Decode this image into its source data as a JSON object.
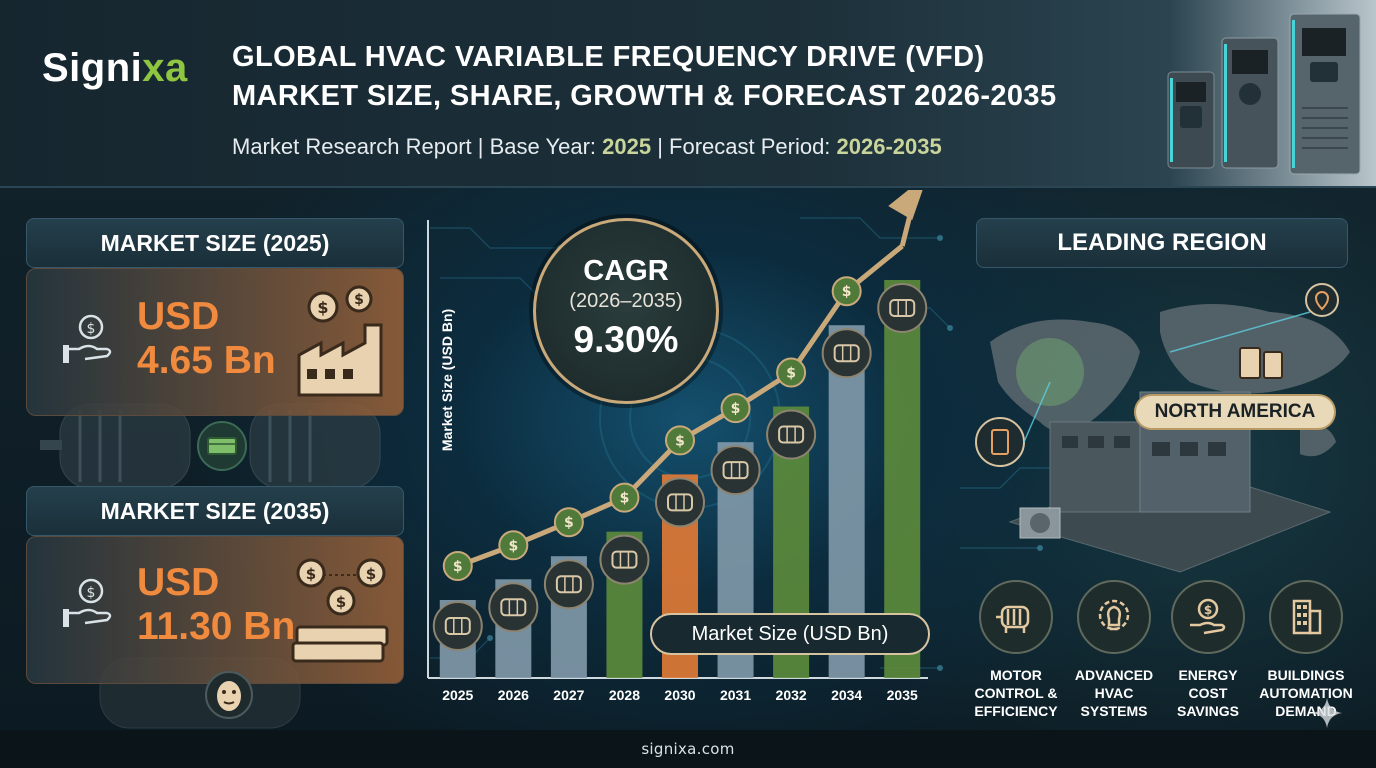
{
  "header": {
    "logo_main": "Signi",
    "logo_accent": "xa",
    "title_line1": "GLOBAL HVAC VARIABLE FREQUENCY DRIVE (VFD)",
    "title_line2": "MARKET SIZE, SHARE, GROWTH & FORECAST 2026-2035",
    "subtitle_prefix": "Market Research Report | Base Year: ",
    "base_year": "2025",
    "subtitle_mid": " | Forecast Period: ",
    "forecast_period": "2026-2035"
  },
  "market_2025": {
    "title": "MARKET SIZE (2025)",
    "value_line1": "USD",
    "value_line2": "4.65 Bn"
  },
  "market_2035": {
    "title": "MARKET SIZE (2035)",
    "value_line1": "USD",
    "value_line2": "11.30 Bn"
  },
  "cagr": {
    "label": "CAGR",
    "period": "(2026–2035)",
    "value": "9.30%"
  },
  "chart_data": {
    "type": "bar",
    "title": "",
    "ylabel": "Market Size (USD Bn)",
    "legend": "Market Size (USD Bn)",
    "categories": [
      "2025",
      "2026",
      "2027",
      "2028",
      "2030",
      "2031",
      "2032",
      "2034",
      "2035"
    ],
    "values": [
      4.65,
      5.08,
      5.56,
      6.07,
      7.26,
      7.93,
      8.67,
      10.36,
      11.3
    ],
    "bar_colors": [
      "#7f98a8",
      "#7f98a8",
      "#7f98a8",
      "#5b8a3c",
      "#e07a36",
      "#7f98a8",
      "#5b8a3c",
      "#7f98a8",
      "#5b8a3c"
    ],
    "trend_icon": "dollar-coin-icon",
    "bar_icons": [
      "motor-icon",
      "motor-icon",
      "motor-icon",
      "fan-icon",
      "motor-icon",
      "motor-icon",
      "vfd-drive-icon",
      "vfd-drive-icon",
      "fan-icon"
    ]
  },
  "leading_region": {
    "title": "LEADING REGION",
    "region": "NORTH AMERICA"
  },
  "drivers": [
    {
      "label": "MOTOR\nCONTROL &\nEFFICIENCY",
      "icon": "motor-icon"
    },
    {
      "label": "ADVANCED\nHVAC\nSYSTEMS",
      "icon": "gear-bulb-icon"
    },
    {
      "label": "ENERGY\nCOST\nSAVINGS",
      "icon": "dollar-hand-icon"
    },
    {
      "label": "BUILDINGS\nAUTOMATION\nDEMAND",
      "icon": "building-icon"
    }
  ],
  "footer": {
    "url": "signixa.com"
  },
  "colors": {
    "accent_orange": "#f08a3e",
    "accent_green": "#8ec641",
    "gold": "#c9a97a"
  }
}
